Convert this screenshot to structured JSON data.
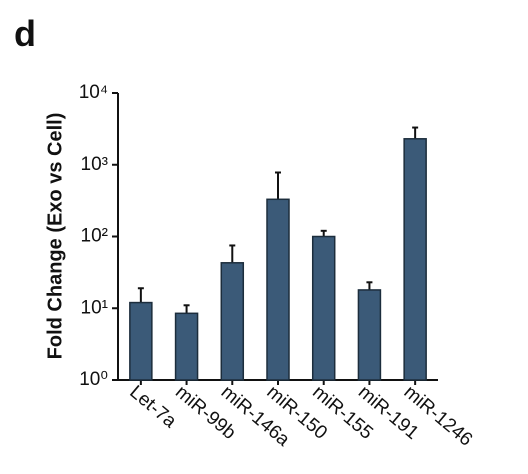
{
  "panel_label": "d",
  "chart_data": {
    "type": "bar",
    "y_label": "Fold Change (Exo vs Cell)",
    "categories": [
      "Let-7a",
      "miR-99b",
      "miR-146a",
      "miR-150",
      "miR-155",
      "miR-191",
      "miR-1246"
    ],
    "values": [
      12,
      8.5,
      43,
      330,
      100,
      18,
      2300
    ],
    "errors": [
      7,
      2.5,
      32,
      450,
      20,
      5,
      1000
    ],
    "color": "#3b5a78",
    "log_scale": true,
    "ylim": [
      1,
      10000
    ],
    "yticks": [
      {
        "value": 1,
        "label": "10⁰"
      },
      {
        "value": 10,
        "label": "10¹"
      },
      {
        "value": 100,
        "label": "10²"
      },
      {
        "value": 1000,
        "label": "10³"
      },
      {
        "value": 10000,
        "label": "10⁴"
      }
    ]
  }
}
